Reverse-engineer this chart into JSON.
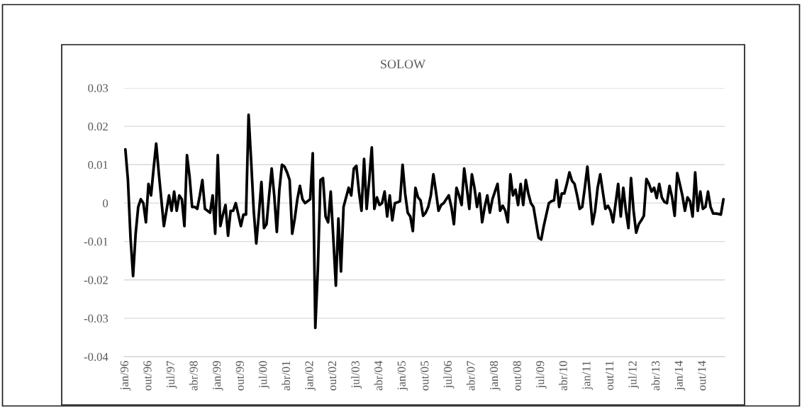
{
  "chart_data": {
    "type": "line",
    "title": "SOLOW",
    "categories": [
      "jan/96",
      null,
      null,
      null,
      null,
      null,
      null,
      null,
      null,
      "out/96",
      null,
      null,
      null,
      null,
      null,
      null,
      null,
      null,
      "jul/97",
      null,
      null,
      null,
      null,
      null,
      null,
      null,
      null,
      "abr/98",
      null,
      null,
      null,
      null,
      null,
      null,
      null,
      null,
      "jan/99",
      null,
      null,
      null,
      null,
      null,
      null,
      null,
      null,
      "out/99",
      null,
      null,
      null,
      null,
      null,
      null,
      null,
      null,
      "jul/00",
      null,
      null,
      null,
      null,
      null,
      null,
      null,
      null,
      "abr/01",
      null,
      null,
      null,
      null,
      null,
      null,
      null,
      null,
      "jan/02",
      null,
      null,
      null,
      null,
      null,
      null,
      null,
      null,
      "out/02",
      null,
      null,
      null,
      null,
      null,
      null,
      null,
      null,
      "jul/03",
      null,
      null,
      null,
      null,
      null,
      null,
      null,
      null,
      "abr/04",
      null,
      null,
      null,
      null,
      null,
      null,
      null,
      null,
      "jan/05",
      null,
      null,
      null,
      null,
      null,
      null,
      null,
      null,
      "out/05",
      null,
      null,
      null,
      null,
      null,
      null,
      null,
      null,
      "jul/06",
      null,
      null,
      null,
      null,
      null,
      null,
      null,
      null,
      "abr/07",
      null,
      null,
      null,
      null,
      null,
      null,
      null,
      null,
      "jan/08",
      null,
      null,
      null,
      null,
      null,
      null,
      null,
      null,
      "out/08",
      null,
      null,
      null,
      null,
      null,
      null,
      null,
      null,
      "jul/09",
      null,
      null,
      null,
      null,
      null,
      null,
      null,
      null,
      "abr/10",
      null,
      null,
      null,
      null,
      null,
      null,
      null,
      null,
      "jan/11",
      null,
      null,
      null,
      null,
      null,
      null,
      null,
      null,
      "out/11",
      null,
      null,
      null,
      null,
      null,
      null,
      null,
      null,
      "jul/12",
      null,
      null,
      null,
      null,
      null,
      null,
      null,
      null,
      "abr/13",
      null,
      null,
      null,
      null,
      null,
      null,
      null,
      null,
      "jan/14",
      null,
      null,
      null,
      null,
      null,
      null,
      null,
      null,
      "out/14",
      null,
      null,
      null,
      null,
      null,
      null,
      null,
      null
    ],
    "series": [
      {
        "color": "#000000",
        "values": [
          0.014,
          0.006,
          -0.009,
          -0.019,
          -0.008,
          -0.001,
          0.001,
          0.0,
          -0.005,
          0.005,
          0.002,
          0.009,
          0.0155,
          0.008,
          0.001,
          -0.006,
          -0.002,
          0.002,
          -0.002,
          0.003,
          -0.002,
          0.002,
          0.001,
          -0.006,
          0.0125,
          0.007,
          -0.001,
          -0.001,
          -0.0015,
          0.002,
          0.006,
          -0.0015,
          -0.002,
          -0.0025,
          0.002,
          -0.008,
          0.0125,
          -0.006,
          -0.003,
          -0.0005,
          -0.0085,
          -0.002,
          -0.002,
          0.0,
          -0.003,
          -0.006,
          -0.003,
          -0.003,
          0.023,
          0.011,
          -0.002,
          -0.0105,
          -0.003,
          0.0055,
          -0.0065,
          -0.0055,
          0.002,
          0.009,
          0.002,
          -0.0075,
          0.0035,
          0.01,
          0.0095,
          0.008,
          0.006,
          -0.008,
          -0.004,
          0.001,
          0.0045,
          0.001,
          0.0,
          0.0005,
          0.001,
          0.013,
          -0.0325,
          -0.017,
          0.006,
          0.0065,
          -0.0035,
          -0.005,
          0.003,
          -0.009,
          -0.0215,
          -0.004,
          -0.0178,
          -0.001,
          0.0015,
          0.004,
          0.002,
          0.009,
          0.0097,
          0.003,
          -0.002,
          0.0115,
          -0.0015,
          0.006,
          0.0145,
          -0.0015,
          0.0015,
          -0.0005,
          0.0,
          0.003,
          -0.0035,
          0.002,
          -0.0045,
          0.0,
          0.0002,
          0.0005,
          0.01,
          0.0025,
          -0.0025,
          -0.0035,
          -0.0073,
          0.004,
          0.0015,
          0.0007,
          -0.0033,
          -0.0025,
          -0.001,
          0.002,
          0.0075,
          0.003,
          -0.002,
          -0.0005,
          0.0,
          0.001,
          0.002,
          -0.001,
          -0.0055,
          0.004,
          0.002,
          -0.0005,
          0.009,
          0.004,
          -0.0015,
          0.0075,
          0.004,
          -0.001,
          0.0025,
          -0.005,
          -0.001,
          0.002,
          -0.0025,
          0.001,
          0.003,
          0.005,
          -0.002,
          -0.0007,
          -0.002,
          -0.005,
          0.0075,
          0.002,
          0.0035,
          -0.0005,
          0.005,
          -0.0005,
          0.006,
          0.0025,
          0.0,
          -0.001,
          -0.005,
          -0.009,
          -0.0095,
          -0.006,
          -0.003,
          0.0,
          0.0005,
          0.0007,
          0.006,
          -0.001,
          0.0025,
          0.0025,
          0.005,
          0.008,
          0.0058,
          0.005,
          0.002,
          -0.0015,
          -0.001,
          0.004,
          0.0095,
          0.002,
          -0.0055,
          -0.002,
          0.004,
          0.0075,
          0.003,
          -0.0015,
          -0.0007,
          -0.002,
          -0.005,
          0.0,
          0.005,
          -0.0035,
          0.004,
          -0.002,
          -0.0065,
          0.0065,
          -0.002,
          -0.0077,
          -0.0055,
          -0.0045,
          -0.0033,
          0.0063,
          0.005,
          0.003,
          0.004,
          0.0013,
          0.005,
          0.0015,
          0.0003,
          0.0,
          0.0045,
          0.0015,
          -0.0033,
          0.0078,
          0.005,
          0.002,
          -0.002,
          0.0015,
          0.0005,
          -0.0035,
          0.008,
          -0.002,
          0.003,
          -0.0015,
          -0.001,
          0.003,
          -0.001,
          -0.0027,
          -0.0027,
          -0.0028,
          -0.003,
          0.001
        ]
      }
    ],
    "ylim": [
      -0.04,
      0.03
    ],
    "yticks": [
      -0.04,
      -0.03,
      -0.02,
      -0.01,
      0,
      0.01,
      0.02,
      0.03
    ],
    "grid": "y"
  }
}
